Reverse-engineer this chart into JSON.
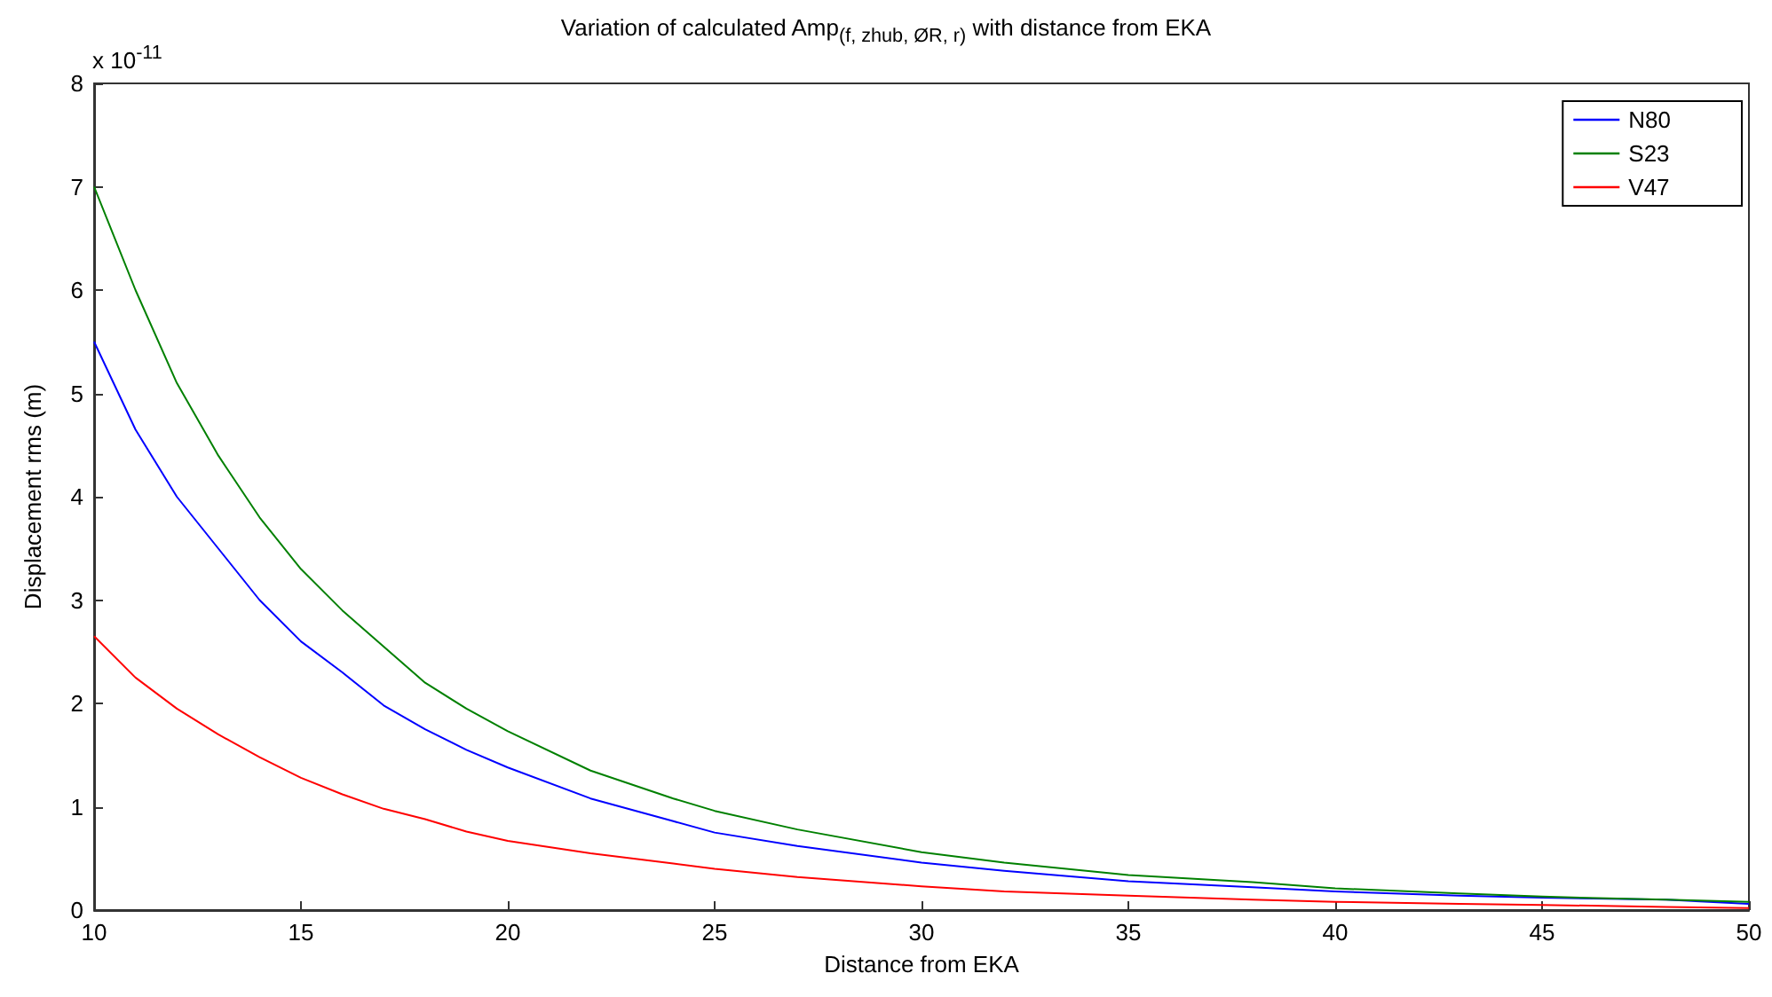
{
  "chart_data": {
    "type": "line",
    "title": "Variation of calculated Amp$_{(f, z}$$_{hub}$$_{, Ø}$$_{R}$$_{, r)}$ with distance from EKA",
    "xlabel": "Distance from EKA",
    "ylabel": "Displacement rms (m)",
    "annotations": [
      "x 10$^{-11}$"
    ],
    "x": [
      10,
      11,
      12,
      13,
      14,
      15,
      16,
      17,
      18,
      19,
      20,
      22,
      24,
      25,
      27,
      30,
      32,
      35,
      38,
      40,
      43,
      45,
      48,
      50
    ],
    "series": [
      {
        "name": "N80",
        "color": "#0000ff",
        "values": [
          5.5,
          4.65,
          4.0,
          3.5,
          3.0,
          2.6,
          2.3,
          1.98,
          1.75,
          1.55,
          1.38,
          1.08,
          0.86,
          0.75,
          0.62,
          0.46,
          0.38,
          0.28,
          0.22,
          0.18,
          0.14,
          0.12,
          0.1,
          0.06
        ]
      },
      {
        "name": "S23",
        "color": "#008000",
        "values": [
          7.0,
          6.0,
          5.1,
          4.4,
          3.8,
          3.3,
          2.9,
          2.55,
          2.2,
          1.95,
          1.73,
          1.35,
          1.08,
          0.96,
          0.78,
          0.56,
          0.46,
          0.34,
          0.27,
          0.21,
          0.16,
          0.13,
          0.1,
          0.08
        ]
      },
      {
        "name": "V47",
        "color": "#ff0000",
        "values": [
          2.65,
          2.25,
          1.95,
          1.7,
          1.48,
          1.28,
          1.12,
          0.98,
          0.88,
          0.76,
          0.67,
          0.55,
          0.45,
          0.4,
          0.32,
          0.23,
          0.18,
          0.14,
          0.1,
          0.08,
          0.06,
          0.05,
          0.03,
          0.02
        ]
      }
    ],
    "xlim": [
      10,
      50
    ],
    "xticks": [
      10,
      15,
      20,
      25,
      30,
      35,
      40,
      45,
      50
    ],
    "ylim": [
      0,
      8
    ],
    "yticks": [
      0,
      1,
      2,
      3,
      4,
      5,
      6,
      7,
      8
    ],
    "grid": false,
    "legend": "top right",
    "marker": "none",
    "line_style": "solid"
  }
}
